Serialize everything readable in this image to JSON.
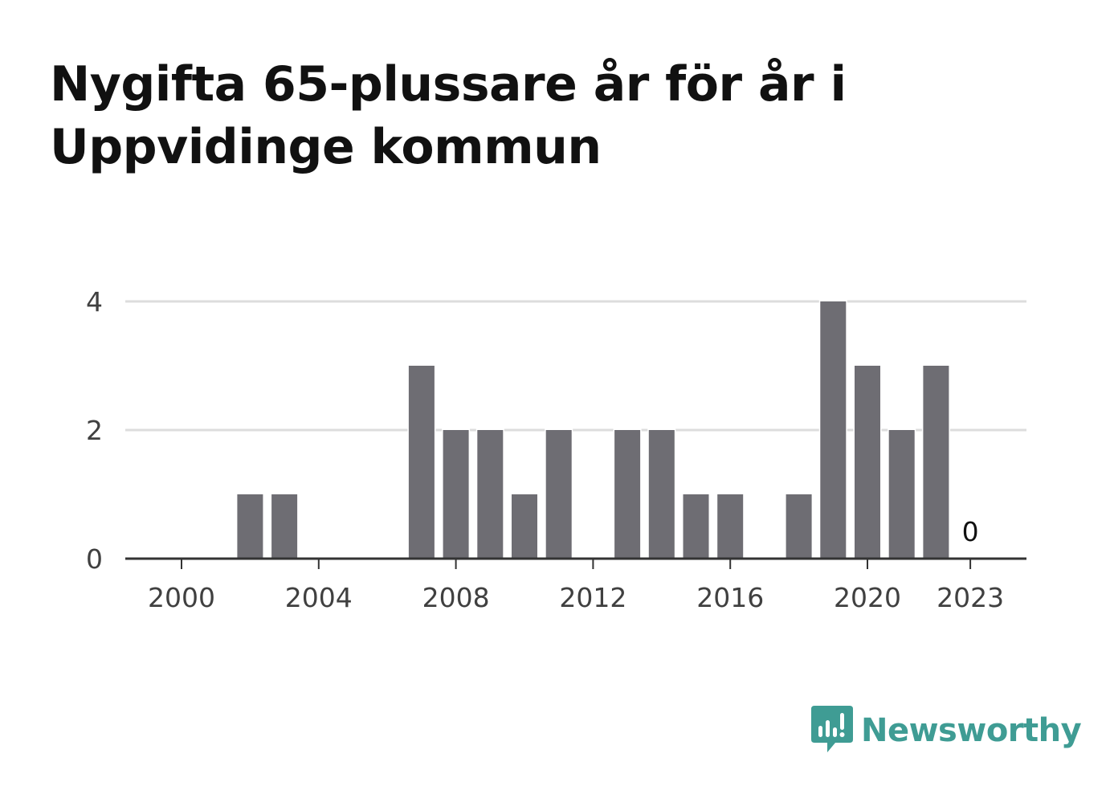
{
  "title": "Nygifta 65-plussare år för år i Uppvidinge kommun",
  "brand": {
    "name": "Newsworthy",
    "icon": "newsworthy-logo-icon",
    "color": "#3f9c94"
  },
  "colors": {
    "bar": "#6e6d73",
    "grid": "#dddddd",
    "axis": "#333333"
  },
  "chart_data": {
    "type": "bar",
    "title": "Nygifta 65-plussare år för år i Uppvidinge kommun",
    "xlabel": "",
    "ylabel": "",
    "categories": [
      2000,
      2001,
      2002,
      2003,
      2004,
      2005,
      2006,
      2007,
      2008,
      2009,
      2010,
      2011,
      2012,
      2013,
      2014,
      2015,
      2016,
      2017,
      2018,
      2019,
      2020,
      2021,
      2022,
      2023
    ],
    "values": [
      0,
      0,
      1,
      1,
      0,
      0,
      0,
      3,
      2,
      2,
      1,
      2,
      0,
      2,
      2,
      1,
      1,
      0,
      1,
      4,
      3,
      2,
      3,
      0
    ],
    "x_ticks": [
      "2000",
      "2004",
      "2008",
      "2012",
      "2016",
      "2020",
      "2023"
    ],
    "y_ticks": [
      "0",
      "2",
      "4"
    ],
    "ylim": [
      0,
      4
    ],
    "grid": true,
    "legend": "none",
    "annotations": [
      {
        "x": 2023,
        "text": "0"
      }
    ]
  }
}
